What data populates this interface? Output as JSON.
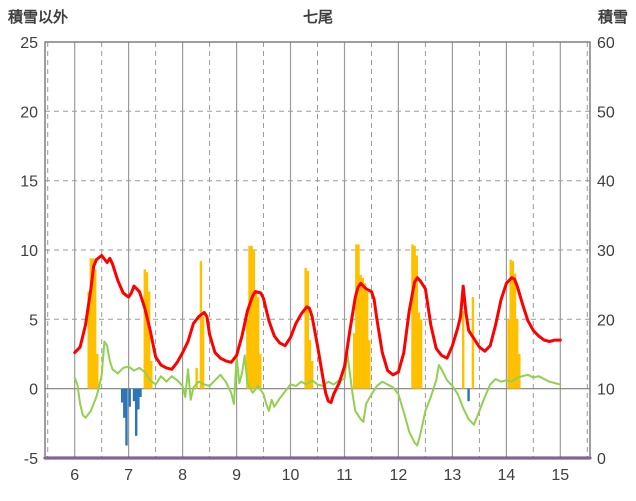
{
  "chart_data": {
    "type": "combo",
    "title": "七尾",
    "left_axis": {
      "label": "積雪以外",
      "min": -5,
      "max": 25,
      "ticks": [
        25,
        20,
        15,
        10,
        5,
        0,
        -5
      ]
    },
    "right_axis": {
      "label": "積雪",
      "min": 0,
      "max": 60,
      "ticks": [
        60,
        50,
        40,
        30,
        20,
        10,
        0
      ]
    },
    "x_axis": {
      "min": 5.45,
      "max": 15.55,
      "minor_step": 0.5,
      "ticks": [
        6,
        7,
        8,
        9,
        10,
        11,
        12,
        13,
        14,
        15
      ]
    },
    "grid": {
      "h_dashed": [
        20,
        15,
        10,
        5
      ],
      "h_solid": [
        0
      ]
    },
    "colors": {
      "grid": "#9b9b9b",
      "border": "#7f7f7f",
      "text": "#3f3f3f",
      "background": "#ffffff"
    },
    "series": [
      {
        "name": "orange-bars",
        "type": "bar",
        "axis": "left",
        "color": "#FFC000",
        "bar_width": 0.045,
        "points": [
          [
            6.26,
            7.0
          ],
          [
            6.3,
            9.4
          ],
          [
            6.34,
            9.4
          ],
          [
            6.38,
            8.6
          ],
          [
            6.42,
            2.5
          ],
          [
            7.3,
            8.6
          ],
          [
            7.34,
            8.4
          ],
          [
            7.38,
            7.0
          ],
          [
            7.42,
            2.0
          ],
          [
            8.26,
            1.5
          ],
          [
            8.34,
            9.2
          ],
          [
            8.38,
            5.2
          ],
          [
            9.2,
            5.0
          ],
          [
            9.24,
            10.3
          ],
          [
            9.28,
            10.3
          ],
          [
            9.32,
            10.0
          ],
          [
            9.36,
            7.0
          ],
          [
            9.4,
            6.6
          ],
          [
            9.44,
            2.5
          ],
          [
            10.28,
            8.7
          ],
          [
            10.32,
            8.5
          ],
          [
            10.36,
            3.5
          ],
          [
            10.4,
            2.0
          ],
          [
            11.18,
            4.0
          ],
          [
            11.22,
            10.4
          ],
          [
            11.26,
            10.4
          ],
          [
            11.3,
            8.2
          ],
          [
            11.34,
            8.0
          ],
          [
            11.38,
            7.6
          ],
          [
            11.42,
            7.0
          ],
          [
            11.46,
            3.5
          ],
          [
            12.26,
            10.4
          ],
          [
            12.3,
            10.3
          ],
          [
            12.34,
            9.6
          ],
          [
            12.38,
            5.5
          ],
          [
            12.42,
            5.0
          ],
          [
            13.2,
            5.6
          ],
          [
            13.38,
            6.6
          ],
          [
            14.04,
            5.0
          ],
          [
            14.08,
            9.3
          ],
          [
            14.12,
            9.2
          ],
          [
            14.16,
            8.3
          ],
          [
            14.2,
            5.0
          ],
          [
            14.24,
            2.5
          ]
        ]
      },
      {
        "name": "blue-bars",
        "type": "bar",
        "axis": "left",
        "color": "#2E75B6",
        "bar_width": 0.045,
        "points": [
          [
            6.88,
            -1.0
          ],
          [
            6.92,
            -2.1
          ],
          [
            6.96,
            -4.1
          ],
          [
            7.02,
            -1.3
          ],
          [
            7.1,
            -0.9
          ],
          [
            7.14,
            -3.4
          ],
          [
            7.18,
            -1.5
          ],
          [
            7.22,
            -0.6
          ],
          [
            13.3,
            -0.9
          ]
        ]
      },
      {
        "name": "green-line",
        "type": "line",
        "axis": "left",
        "color": "#92D050",
        "width": 2,
        "points": [
          [
            6.0,
            0.8
          ],
          [
            6.05,
            0.3
          ],
          [
            6.1,
            -1.1
          ],
          [
            6.15,
            -1.9
          ],
          [
            6.2,
            -2.1
          ],
          [
            6.3,
            -1.6
          ],
          [
            6.4,
            -0.6
          ],
          [
            6.45,
            0.1
          ],
          [
            6.5,
            1.0
          ],
          [
            6.55,
            3.4
          ],
          [
            6.6,
            3.1
          ],
          [
            6.65,
            2.0
          ],
          [
            6.7,
            1.4
          ],
          [
            6.8,
            1.1
          ],
          [
            6.9,
            1.5
          ],
          [
            7.0,
            1.6
          ],
          [
            7.1,
            1.3
          ],
          [
            7.2,
            1.5
          ],
          [
            7.3,
            1.2
          ],
          [
            7.4,
            0.6
          ],
          [
            7.5,
            0.3
          ],
          [
            7.6,
            0.9
          ],
          [
            7.7,
            0.5
          ],
          [
            7.8,
            0.9
          ],
          [
            7.9,
            0.6
          ],
          [
            8.0,
            0.2
          ],
          [
            8.05,
            -0.6
          ],
          [
            8.1,
            1.4
          ],
          [
            8.15,
            -0.8
          ],
          [
            8.2,
            0.1
          ],
          [
            8.3,
            0.5
          ],
          [
            8.4,
            0.3
          ],
          [
            8.5,
            0.2
          ],
          [
            8.6,
            0.6
          ],
          [
            8.7,
            1.0
          ],
          [
            8.8,
            0.5
          ],
          [
            8.9,
            -0.3
          ],
          [
            8.95,
            -1.1
          ],
          [
            9.0,
            2.3
          ],
          [
            9.05,
            0.4
          ],
          [
            9.1,
            1.1
          ],
          [
            9.15,
            2.4
          ],
          [
            9.2,
            0.4
          ],
          [
            9.3,
            -0.3
          ],
          [
            9.4,
            0.2
          ],
          [
            9.5,
            -0.4
          ],
          [
            9.55,
            -1.1
          ],
          [
            9.6,
            -1.6
          ],
          [
            9.65,
            -0.8
          ],
          [
            9.7,
            -1.3
          ],
          [
            9.8,
            -0.7
          ],
          [
            9.9,
            -0.2
          ],
          [
            10.0,
            0.3
          ],
          [
            10.1,
            0.2
          ],
          [
            10.2,
            0.5
          ],
          [
            10.3,
            0.3
          ],
          [
            10.4,
            0.6
          ],
          [
            10.5,
            0.3
          ],
          [
            10.6,
            0.2
          ],
          [
            10.7,
            0.5
          ],
          [
            10.8,
            0.3
          ],
          [
            10.9,
            0.6
          ],
          [
            11.0,
            0.7
          ],
          [
            11.05,
            2.6
          ],
          [
            11.1,
            1.1
          ],
          [
            11.15,
            -0.4
          ],
          [
            11.2,
            -1.6
          ],
          [
            11.3,
            -2.2
          ],
          [
            11.35,
            -2.4
          ],
          [
            11.4,
            -1.1
          ],
          [
            11.5,
            -0.4
          ],
          [
            11.6,
            0.2
          ],
          [
            11.7,
            0.5
          ],
          [
            11.8,
            0.3
          ],
          [
            11.9,
            0.1
          ],
          [
            12.0,
            -0.4
          ],
          [
            12.1,
            -1.7
          ],
          [
            12.2,
            -3.1
          ],
          [
            12.3,
            -3.9
          ],
          [
            12.35,
            -4.1
          ],
          [
            12.4,
            -3.4
          ],
          [
            12.5,
            -1.6
          ],
          [
            12.6,
            -0.6
          ],
          [
            12.7,
            0.6
          ],
          [
            12.75,
            1.7
          ],
          [
            12.8,
            1.4
          ],
          [
            12.9,
            0.6
          ],
          [
            13.0,
            0.2
          ],
          [
            13.1,
            -0.4
          ],
          [
            13.2,
            -1.4
          ],
          [
            13.3,
            -2.2
          ],
          [
            13.4,
            -2.6
          ],
          [
            13.5,
            -1.6
          ],
          [
            13.6,
            -0.6
          ],
          [
            13.7,
            0.3
          ],
          [
            13.8,
            0.7
          ],
          [
            13.9,
            0.5
          ],
          [
            14.0,
            0.6
          ],
          [
            14.1,
            0.5
          ],
          [
            14.2,
            0.8
          ],
          [
            14.3,
            0.9
          ],
          [
            14.4,
            1.0
          ],
          [
            14.5,
            0.8
          ],
          [
            14.6,
            0.9
          ],
          [
            14.7,
            0.7
          ],
          [
            14.8,
            0.5
          ],
          [
            14.9,
            0.4
          ],
          [
            15.0,
            0.3
          ]
        ]
      },
      {
        "name": "red-line",
        "type": "line",
        "axis": "left",
        "color": "#FF0000",
        "width": 3,
        "points": [
          [
            6.0,
            2.6
          ],
          [
            6.1,
            3.0
          ],
          [
            6.2,
            4.6
          ],
          [
            6.3,
            7.2
          ],
          [
            6.35,
            8.8
          ],
          [
            6.4,
            9.3
          ],
          [
            6.5,
            9.6
          ],
          [
            6.6,
            9.1
          ],
          [
            6.65,
            9.4
          ],
          [
            6.7,
            9.0
          ],
          [
            6.8,
            7.8
          ],
          [
            6.9,
            6.9
          ],
          [
            7.0,
            6.6
          ],
          [
            7.05,
            6.9
          ],
          [
            7.1,
            7.4
          ],
          [
            7.2,
            7.0
          ],
          [
            7.3,
            5.8
          ],
          [
            7.4,
            4.2
          ],
          [
            7.5,
            2.3
          ],
          [
            7.6,
            1.7
          ],
          [
            7.7,
            1.5
          ],
          [
            7.8,
            1.4
          ],
          [
            7.9,
            1.9
          ],
          [
            8.0,
            2.6
          ],
          [
            8.1,
            3.4
          ],
          [
            8.2,
            4.7
          ],
          [
            8.3,
            5.2
          ],
          [
            8.4,
            5.5
          ],
          [
            8.45,
            5.2
          ],
          [
            8.5,
            3.9
          ],
          [
            8.6,
            2.6
          ],
          [
            8.7,
            2.2
          ],
          [
            8.8,
            2.0
          ],
          [
            8.9,
            1.9
          ],
          [
            9.0,
            2.4
          ],
          [
            9.1,
            3.8
          ],
          [
            9.2,
            5.6
          ],
          [
            9.3,
            6.7
          ],
          [
            9.35,
            7.0
          ],
          [
            9.45,
            6.9
          ],
          [
            9.5,
            6.5
          ],
          [
            9.6,
            4.9
          ],
          [
            9.7,
            3.8
          ],
          [
            9.8,
            3.3
          ],
          [
            9.9,
            3.1
          ],
          [
            10.0,
            3.7
          ],
          [
            10.1,
            4.7
          ],
          [
            10.2,
            5.4
          ],
          [
            10.3,
            5.9
          ],
          [
            10.35,
            5.8
          ],
          [
            10.4,
            5.2
          ],
          [
            10.5,
            3.1
          ],
          [
            10.6,
            0.8
          ],
          [
            10.65,
            -0.3
          ],
          [
            10.7,
            -0.9
          ],
          [
            10.75,
            -1.0
          ],
          [
            10.8,
            -0.4
          ],
          [
            10.9,
            0.4
          ],
          [
            11.0,
            1.6
          ],
          [
            11.1,
            4.2
          ],
          [
            11.2,
            6.6
          ],
          [
            11.25,
            7.3
          ],
          [
            11.3,
            7.6
          ],
          [
            11.4,
            7.2
          ],
          [
            11.5,
            7.0
          ],
          [
            11.55,
            6.4
          ],
          [
            11.6,
            5.0
          ],
          [
            11.7,
            2.6
          ],
          [
            11.8,
            1.3
          ],
          [
            11.9,
            1.0
          ],
          [
            12.0,
            1.2
          ],
          [
            12.1,
            2.6
          ],
          [
            12.2,
            5.6
          ],
          [
            12.3,
            7.7
          ],
          [
            12.35,
            8.0
          ],
          [
            12.4,
            7.8
          ],
          [
            12.5,
            7.2
          ],
          [
            12.6,
            4.6
          ],
          [
            12.7,
            2.9
          ],
          [
            12.8,
            2.4
          ],
          [
            12.9,
            2.2
          ],
          [
            13.0,
            3.1
          ],
          [
            13.1,
            4.4
          ],
          [
            13.15,
            5.2
          ],
          [
            13.2,
            7.4
          ],
          [
            13.25,
            5.5
          ],
          [
            13.3,
            4.2
          ],
          [
            13.4,
            3.6
          ],
          [
            13.5,
            3.0
          ],
          [
            13.6,
            2.7
          ],
          [
            13.7,
            3.1
          ],
          [
            13.8,
            4.6
          ],
          [
            13.9,
            6.4
          ],
          [
            14.0,
            7.6
          ],
          [
            14.1,
            8.0
          ],
          [
            14.15,
            7.9
          ],
          [
            14.2,
            7.4
          ],
          [
            14.3,
            6.1
          ],
          [
            14.4,
            4.9
          ],
          [
            14.5,
            4.2
          ],
          [
            14.6,
            3.8
          ],
          [
            14.7,
            3.5
          ],
          [
            14.8,
            3.4
          ],
          [
            14.9,
            3.5
          ],
          [
            15.0,
            3.5
          ]
        ]
      },
      {
        "name": "purple-line",
        "type": "line",
        "axis": "right",
        "color": "#7030A0",
        "width": 3,
        "points": [
          [
            5.45,
            0
          ],
          [
            15.55,
            0
          ]
        ]
      }
    ]
  }
}
